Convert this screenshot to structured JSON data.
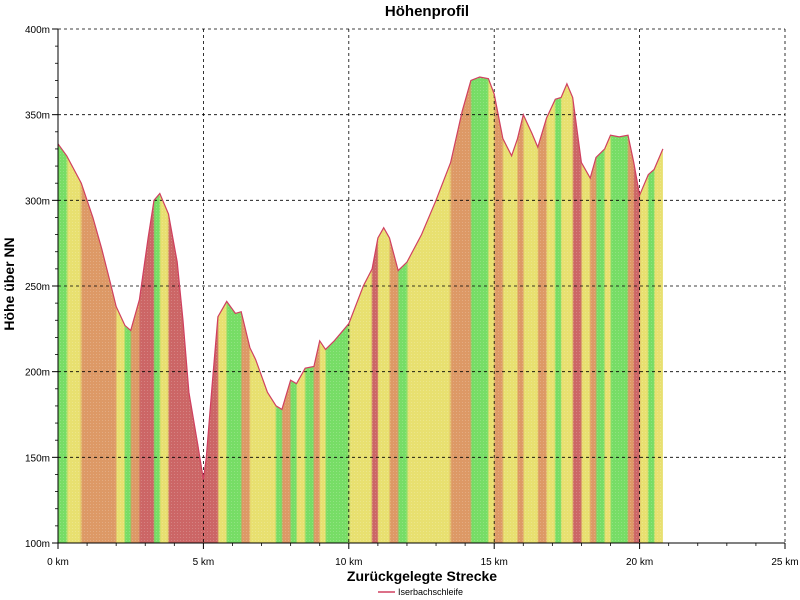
{
  "chart_data": {
    "type": "area",
    "title": "Höhenprofil",
    "xlabel": "Zurückgelegte Strecke",
    "ylabel": "Höhe über NN",
    "xlim": [
      0,
      25
    ],
    "ylim": [
      100,
      400
    ],
    "x_ticks": [
      0,
      5,
      10,
      15,
      20,
      25
    ],
    "x_tick_labels": [
      "0 km",
      "5 km",
      "10 km",
      "15 km",
      "20 km",
      "25 km"
    ],
    "y_ticks": [
      100,
      150,
      200,
      250,
      300,
      350,
      400
    ],
    "y_tick_labels": [
      "100m",
      "150m",
      "200m",
      "250m",
      "300m",
      "350m",
      "400m"
    ],
    "grid": true,
    "legend_position": "bottom-center",
    "series": [
      {
        "name": "Iserbachschleife",
        "color": "#d04060",
        "unit_x": "km",
        "unit_y": "m",
        "x": [
          0,
          0.3,
          0.8,
          1.2,
          1.5,
          1.8,
          2.0,
          2.3,
          2.5,
          2.8,
          3.1,
          3.3,
          3.5,
          3.8,
          4.1,
          4.3,
          4.5,
          4.8,
          5.0,
          5.1,
          5.3,
          5.5,
          5.8,
          6.1,
          6.3,
          6.6,
          6.8,
          7.2,
          7.5,
          7.7,
          8.0,
          8.2,
          8.5,
          8.8,
          9.0,
          9.2,
          9.5,
          10.0,
          10.5,
          10.8,
          11.0,
          11.2,
          11.4,
          11.7,
          12.0,
          12.5,
          13.0,
          13.5,
          13.9,
          14.2,
          14.5,
          14.8,
          15.0,
          15.3,
          15.6,
          15.8,
          16.0,
          16.3,
          16.5,
          16.8,
          17.1,
          17.3,
          17.5,
          17.7,
          18.0,
          18.3,
          18.5,
          18.8,
          19.0,
          19.3,
          19.6,
          19.8,
          20.0,
          20.3,
          20.5,
          20.8
        ],
        "y": [
          333,
          326,
          310,
          290,
          272,
          252,
          238,
          227,
          224,
          242,
          278,
          300,
          304,
          292,
          264,
          230,
          188,
          158,
          137,
          150,
          192,
          232,
          241,
          234,
          235,
          214,
          207,
          188,
          180,
          178,
          195,
          193,
          202,
          203,
          218,
          213,
          218,
          228,
          250,
          260,
          278,
          284,
          278,
          259,
          264,
          280,
          300,
          322,
          352,
          370,
          372,
          371,
          362,
          336,
          326,
          336,
          350,
          339,
          331,
          348,
          359,
          360,
          368,
          360,
          322,
          313,
          325,
          330,
          338,
          337,
          338,
          322,
          303,
          315,
          318,
          330
        ]
      }
    ]
  }
}
